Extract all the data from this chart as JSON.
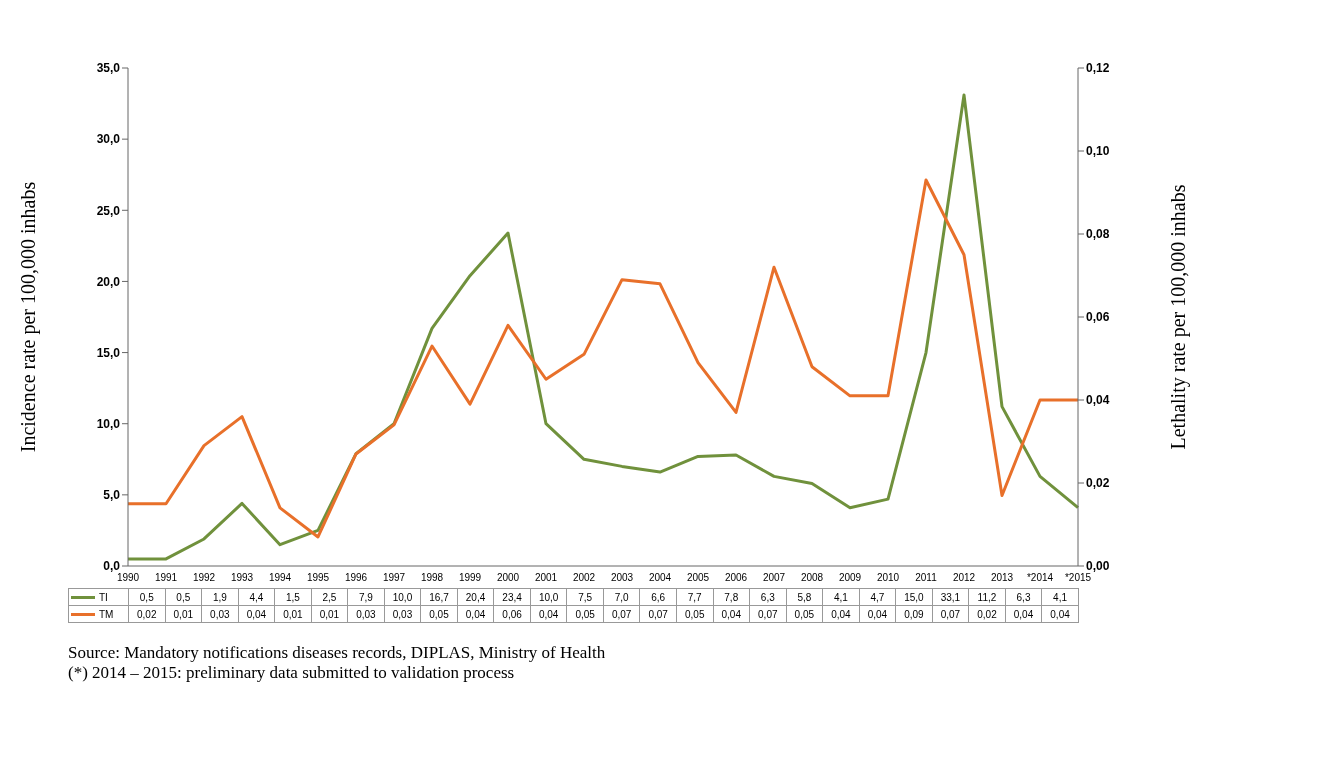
{
  "chart_data": {
    "type": "line",
    "categories": [
      "1990",
      "1991",
      "1992",
      "1993",
      "1994",
      "1995",
      "1996",
      "1997",
      "1998",
      "1999",
      "2000",
      "2001",
      "2002",
      "2003",
      "2004",
      "2005",
      "2006",
      "2007",
      "2008",
      "2009",
      "2010",
      "2011",
      "2012",
      "2013",
      "*2014",
      "*2015"
    ],
    "series": [
      {
        "name": "TI",
        "color": "#70913c",
        "values": [
          0.5,
          0.5,
          1.9,
          4.4,
          1.5,
          2.5,
          7.9,
          10.0,
          16.7,
          20.4,
          23.4,
          10.0,
          7.5,
          7.0,
          6.6,
          7.7,
          7.8,
          6.3,
          5.8,
          4.1,
          4.7,
          15.0,
          33.1,
          11.2,
          6.3,
          4.1
        ],
        "value_labels": [
          "0,5",
          "0,5",
          "1,9",
          "4,4",
          "1,5",
          "2,5",
          "7,9",
          "10,0",
          "16,7",
          "20,4",
          "23,4",
          "10,0",
          "7,5",
          "7,0",
          "6,6",
          "7,7",
          "7,8",
          "6,3",
          "5,8",
          "4,1",
          "4,7",
          "15,0",
          "33,1",
          "11,2",
          "6,3",
          "4,1"
        ]
      },
      {
        "name": "TM",
        "color": "#e8702a",
        "axis": "y2",
        "values": [
          0.015,
          0.015,
          0.029,
          0.036,
          0.014,
          0.007,
          0.027,
          0.034,
          0.053,
          0.039,
          0.058,
          0.045,
          0.051,
          0.069,
          0.068,
          0.049,
          0.037,
          0.072,
          0.048,
          0.041,
          0.041,
          0.093,
          0.075,
          0.017,
          0.04,
          0.04
        ],
        "value_labels": [
          "0,02",
          "0,01",
          "0,03",
          "0,04",
          "0,01",
          "0,01",
          "0,03",
          "0,03",
          "0,05",
          "0,04",
          "0,06",
          "0,04",
          "0,05",
          "0,07",
          "0,07",
          "0,05",
          "0,04",
          "0,07",
          "0,05",
          "0,04",
          "0,04",
          "0,09",
          "0,07",
          "0,02",
          "0,04",
          "0,04"
        ]
      }
    ],
    "ylabel": "Incidence rate per 100,000 inhabs",
    "y2label": "Lethality rate per 100,000 inhabs",
    "ylim": [
      0,
      35
    ],
    "yticks": [
      {
        "value": 0,
        "label": "0,0"
      },
      {
        "value": 5,
        "label": "5,0"
      },
      {
        "value": 10,
        "label": "10,0"
      },
      {
        "value": 15,
        "label": "15,0"
      },
      {
        "value": 20,
        "label": "20,0"
      },
      {
        "value": 25,
        "label": "25,0"
      },
      {
        "value": 30,
        "label": "30,0"
      },
      {
        "value": 35,
        "label": "35,0"
      }
    ],
    "y2lim": [
      0,
      0.12
    ],
    "y2ticks": [
      {
        "value": 0,
        "label": "0,00"
      },
      {
        "value": 0.02,
        "label": "0,02"
      },
      {
        "value": 0.04,
        "label": "0,04"
      },
      {
        "value": 0.06,
        "label": "0,06"
      },
      {
        "value": 0.08,
        "label": "0,08"
      },
      {
        "value": 0.1,
        "label": "0,10"
      },
      {
        "value": 0.12,
        "label": "0,12"
      }
    ],
    "legend": "bottom",
    "annotations": [
      "Source: Mandatory notifications diseases records, DIPLAS, Ministry of Health",
      "(*) 2014 – 2015: preliminary data submitted to validation process"
    ]
  }
}
